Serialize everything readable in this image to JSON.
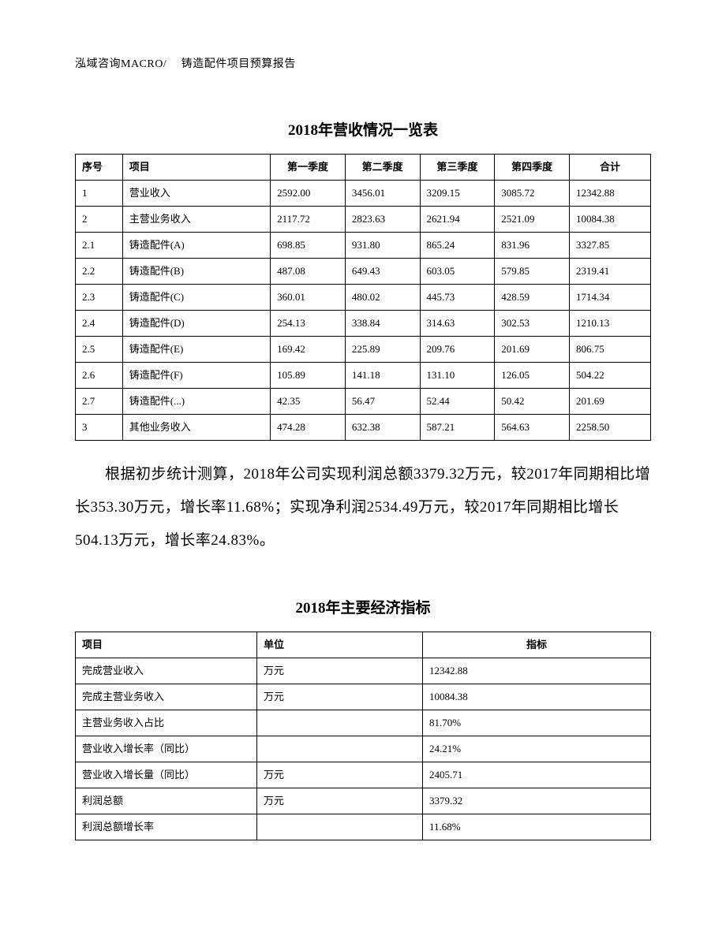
{
  "header": {
    "text": "泓域咨询MACRO/　 铸造配件项目预算报告"
  },
  "table1": {
    "title": "2018年营收情况一览表",
    "columns": [
      "序号",
      "项目",
      "第一季度",
      "第二季度",
      "第三季度",
      "第四季度",
      "合计"
    ],
    "rows": [
      [
        "1",
        "营业收入",
        "2592.00",
        "3456.01",
        "3209.15",
        "3085.72",
        "12342.88"
      ],
      [
        "2",
        "主营业务收入",
        "2117.72",
        "2823.63",
        "2621.94",
        "2521.09",
        "10084.38"
      ],
      [
        "2.1",
        "铸造配件(A)",
        "698.85",
        "931.80",
        "865.24",
        "831.96",
        "3327.85"
      ],
      [
        "2.2",
        "铸造配件(B)",
        "487.08",
        "649.43",
        "603.05",
        "579.85",
        "2319.41"
      ],
      [
        "2.3",
        "铸造配件(C)",
        "360.01",
        "480.02",
        "445.73",
        "428.59",
        "1714.34"
      ],
      [
        "2.4",
        "铸造配件(D)",
        "254.13",
        "338.84",
        "314.63",
        "302.53",
        "1210.13"
      ],
      [
        "2.5",
        "铸造配件(E)",
        "169.42",
        "225.89",
        "209.76",
        "201.69",
        "806.75"
      ],
      [
        "2.6",
        "铸造配件(F)",
        "105.89",
        "141.18",
        "131.10",
        "126.05",
        "504.22"
      ],
      [
        "2.7",
        "铸造配件(...)",
        "42.35",
        "56.47",
        "52.44",
        "50.42",
        "201.69"
      ],
      [
        "3",
        "其他业务收入",
        "474.28",
        "632.38",
        "587.21",
        "564.63",
        "2258.50"
      ]
    ]
  },
  "paragraph": {
    "text": "根据初步统计测算，2018年公司实现利润总额3379.32万元，较2017年同期相比增长353.30万元，增长率11.68%；实现净利润2534.49万元，较2017年同期相比增长504.13万元，增长率24.83%。"
  },
  "table2": {
    "title": "2018年主要经济指标",
    "columns": [
      "项目",
      "单位",
      "指标"
    ],
    "rows": [
      [
        "完成营业收入",
        "万元",
        "12342.88"
      ],
      [
        "完成主营业务收入",
        "万元",
        "10084.38"
      ],
      [
        "主营业务收入占比",
        "",
        "81.70%"
      ],
      [
        "营业收入增长率（同比）",
        "",
        "24.21%"
      ],
      [
        "营业收入增长量（同比）",
        "万元",
        "2405.71"
      ],
      [
        "利润总额",
        "万元",
        "3379.32"
      ],
      [
        "利润总额增长率",
        "",
        "11.68%"
      ]
    ]
  }
}
